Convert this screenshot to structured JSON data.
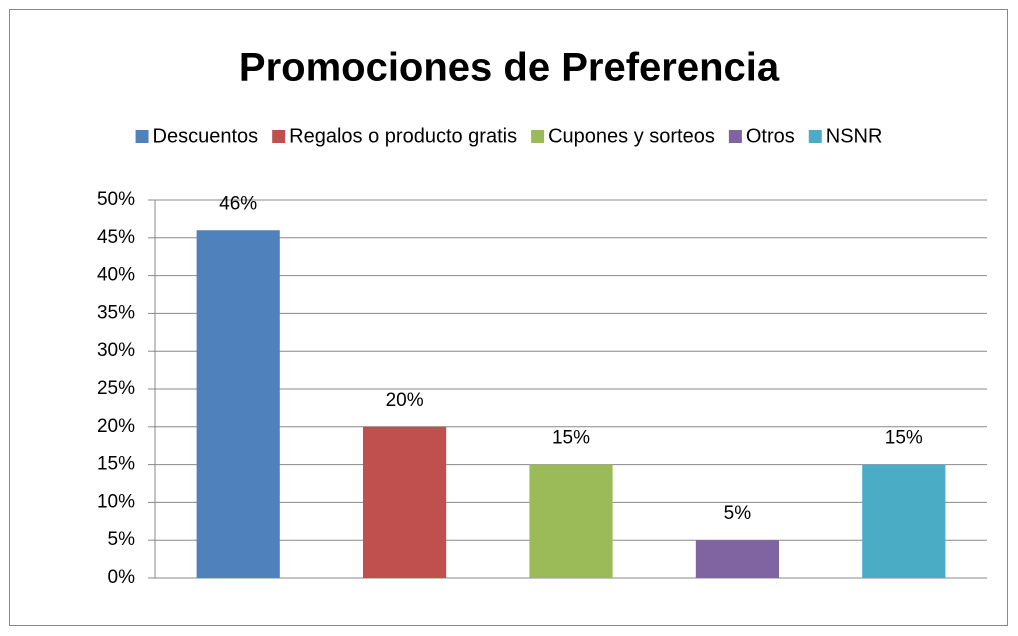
{
  "chart_data": {
    "type": "bar",
    "title": "Promociones de Preferencia",
    "series": [
      {
        "name": "Descuentos",
        "color": "#4f81bd",
        "values": [
          46
        ],
        "value_labels": [
          "46%"
        ]
      },
      {
        "name": "Regalos o producto gratis",
        "color": "#c0504d",
        "values": [
          20
        ],
        "value_labels": [
          "20%"
        ]
      },
      {
        "name": "Cupones y sorteos",
        "color": "#9bbb59",
        "values": [
          15
        ],
        "value_labels": [
          "15%"
        ]
      },
      {
        "name": "Otros",
        "color": "#8064a2",
        "values": [
          5
        ],
        "value_labels": [
          "5%"
        ]
      },
      {
        "name": "NSNR",
        "color": "#4bacc6",
        "values": [
          15
        ],
        "value_labels": [
          "15%"
        ]
      }
    ],
    "ylim": [
      0,
      50
    ],
    "yticks": [
      {
        "value": 0,
        "label": "0%"
      },
      {
        "value": 5,
        "label": "5%"
      },
      {
        "value": 10,
        "label": "10%"
      },
      {
        "value": 15,
        "label": "15%"
      },
      {
        "value": 20,
        "label": "20%"
      },
      {
        "value": 25,
        "label": "25%"
      },
      {
        "value": 30,
        "label": "30%"
      },
      {
        "value": 35,
        "label": "35%"
      },
      {
        "value": 40,
        "label": "40%"
      },
      {
        "value": 45,
        "label": "45%"
      },
      {
        "value": 50,
        "label": "50%"
      }
    ],
    "grid": true,
    "legend": "top"
  }
}
